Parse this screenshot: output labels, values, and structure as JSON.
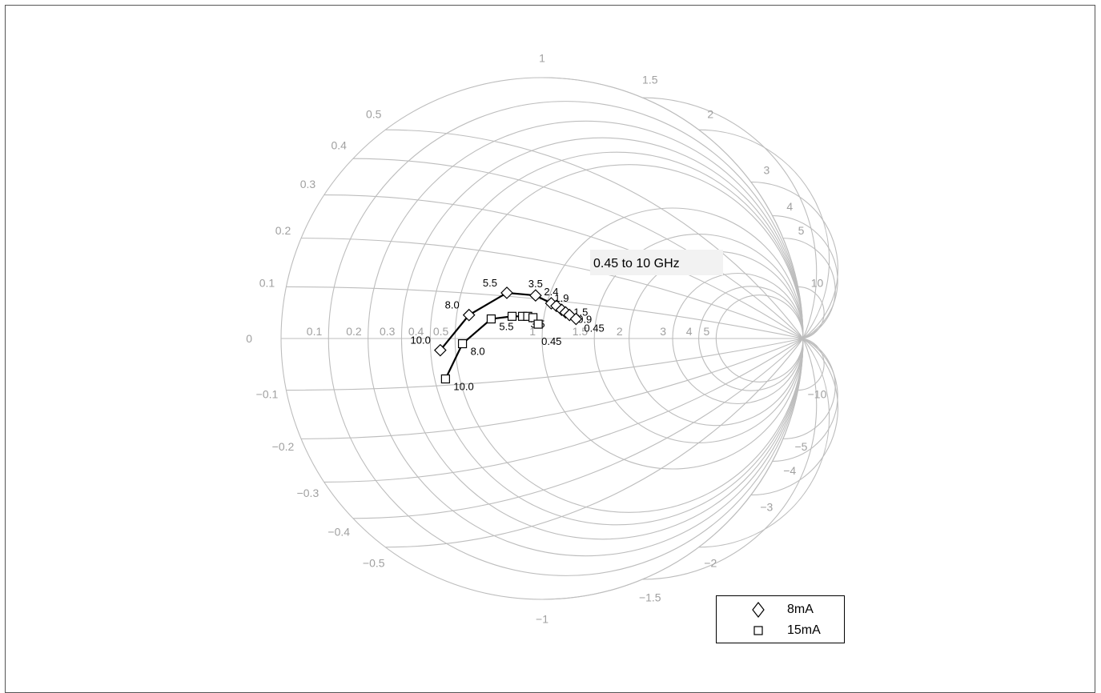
{
  "chart_data": {
    "type": "scatter",
    "chart_kind": "smith-chart",
    "annotation": "0.45 to 10 GHz",
    "resistance_labels": [
      "0.1",
      "0.2",
      "0.3",
      "0.4",
      "0.5",
      "1",
      "1.5",
      "2",
      "3",
      "4",
      "5"
    ],
    "reactance_labels": [
      {
        "x": 0.1,
        "text": "0.1"
      },
      {
        "x": 0.2,
        "text": "0.2"
      },
      {
        "x": 0.3,
        "text": "0.3"
      },
      {
        "x": 0.4,
        "text": "0.4"
      },
      {
        "x": 0.5,
        "text": "0.5"
      },
      {
        "x": 1,
        "text": "1"
      },
      {
        "x": 1.5,
        "text": "1.5"
      },
      {
        "x": 2,
        "text": "2"
      },
      {
        "x": 3,
        "text": "3"
      },
      {
        "x": 4,
        "text": "4"
      },
      {
        "x": 5,
        "text": "5"
      },
      {
        "x": 10,
        "text": "10"
      },
      {
        "x": -0.1,
        "text": "−0.1"
      },
      {
        "x": -0.2,
        "text": "−0.2"
      },
      {
        "x": -0.3,
        "text": "−0.3"
      },
      {
        "x": -0.4,
        "text": "−0.4"
      },
      {
        "x": -0.5,
        "text": "−0.5"
      },
      {
        "x": -1,
        "text": "−1"
      },
      {
        "x": -1.5,
        "text": "−1.5"
      },
      {
        "x": -2,
        "text": "−2"
      },
      {
        "x": -3,
        "text": "−3"
      },
      {
        "x": -4,
        "text": "−4"
      },
      {
        "x": -5,
        "text": "−5"
      },
      {
        "x": -10,
        "text": "−10"
      }
    ],
    "center_label": "0",
    "series": [
      {
        "name": "8mA",
        "marker": "diamond",
        "points": [
          {
            "freq": "10.0",
            "gamma_re": -0.39,
            "gamma_im": -0.045
          },
          {
            "freq": "8.0",
            "gamma_re": -0.28,
            "gamma_im": 0.09
          },
          {
            "freq": "5.5",
            "gamma_re": -0.135,
            "gamma_im": 0.175
          },
          {
            "freq": "3.5",
            "gamma_re": -0.025,
            "gamma_im": 0.165
          },
          {
            "freq": "2.4",
            "gamma_re": 0.035,
            "gamma_im": 0.135
          },
          {
            "freq": "",
            "gamma_re": 0.055,
            "gamma_im": 0.125
          },
          {
            "freq": "1.9",
            "gamma_re": 0.075,
            "gamma_im": 0.11
          },
          {
            "freq": "1.5",
            "gamma_re": 0.09,
            "gamma_im": 0.1
          },
          {
            "freq": "0.9",
            "gamma_re": 0.105,
            "gamma_im": 0.09
          },
          {
            "freq": "0.45",
            "gamma_re": 0.13,
            "gamma_im": 0.075
          }
        ]
      },
      {
        "name": "15mA",
        "marker": "square",
        "points": [
          {
            "freq": "10.0",
            "gamma_re": -0.37,
            "gamma_im": -0.155
          },
          {
            "freq": "8.0",
            "gamma_re": -0.305,
            "gamma_im": -0.02
          },
          {
            "freq": "5.5",
            "gamma_re": -0.195,
            "gamma_im": 0.075
          },
          {
            "freq": "",
            "gamma_re": -0.115,
            "gamma_im": 0.085
          },
          {
            "freq": "3.5",
            "gamma_re": -0.075,
            "gamma_im": 0.085
          },
          {
            "freq": "",
            "gamma_re": -0.055,
            "gamma_im": 0.085
          },
          {
            "freq": "",
            "gamma_re": -0.035,
            "gamma_im": 0.08
          },
          {
            "freq": "0.45",
            "gamma_re": -0.015,
            "gamma_im": 0.055
          }
        ]
      }
    ],
    "legend_position": "bottom-right",
    "grid": true
  },
  "legend": {
    "items": [
      {
        "label": "8mA",
        "marker": "diamond"
      },
      {
        "label": "15mA",
        "marker": "square"
      }
    ]
  },
  "colors": {
    "grid": "#bdbdbd",
    "axis_text": "#a0a0a0",
    "series": "#000000"
  }
}
